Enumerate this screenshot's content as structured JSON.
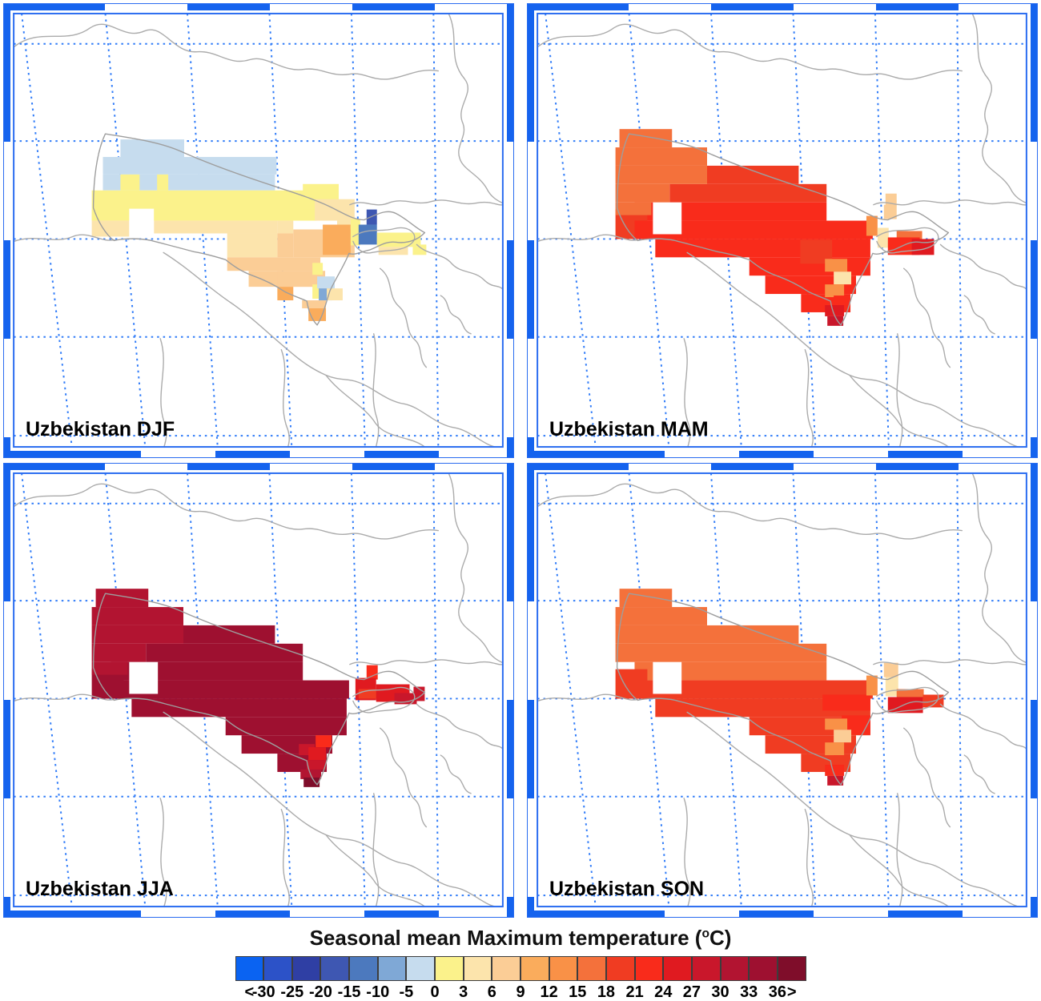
{
  "chart_data": {
    "type": "heatmap",
    "kind": "gridded seasonal climatology maps, 2x2 panel figure",
    "region": "Uzbekistan",
    "variable": "Seasonal mean Maximum temperature",
    "units": "°C",
    "grid_style": "blue dotted graticule, gray country borders, blue segmented map frame",
    "panels": [
      {
        "season": "DJF",
        "label": "Uzbekistan DJF",
        "cells": [
          [
            146,
            170,
            80,
            24,
            6
          ],
          [
            124,
            192,
            218,
            22,
            6
          ],
          [
            124,
            214,
            216,
            20,
            6
          ],
          [
            146,
            214,
            24,
            20,
            7
          ],
          [
            192,
            214,
            14,
            20,
            7
          ],
          [
            110,
            234,
            283,
            38,
            7
          ],
          [
            375,
            226,
            45,
            32,
            7
          ],
          [
            110,
            258,
            47,
            14,
            7
          ],
          [
            110,
            272,
            47,
            20,
            8
          ],
          [
            188,
            272,
            155,
            16,
            8
          ],
          [
            343,
            272,
            20,
            16,
            8
          ],
          [
            280,
            288,
            63,
            30,
            8
          ],
          [
            390,
            245,
            50,
            27,
            8
          ],
          [
            418,
            258,
            18,
            20,
            8
          ],
          [
            280,
            318,
            117,
            17,
            9
          ],
          [
            307,
            335,
            96,
            20,
            9
          ],
          [
            363,
            283,
            77,
            35,
            9
          ],
          [
            343,
            288,
            20,
            30,
            9
          ],
          [
            343,
            335,
            54,
            20,
            9
          ],
          [
            374,
            372,
            30,
            10,
            9
          ],
          [
            343,
            355,
            20,
            17,
            10
          ],
          [
            400,
            277,
            35,
            38,
            10
          ],
          [
            382,
            382,
            22,
            16,
            10
          ],
          [
            157,
            257,
            31,
            35,
            -1
          ],
          [
            387,
            325,
            13,
            15,
            7
          ],
          [
            387,
            352,
            10,
            18,
            7
          ],
          [
            393,
            342,
            22,
            15,
            6
          ],
          [
            395,
            357,
            17,
            15,
            5
          ],
          [
            405,
            357,
            20,
            15,
            8
          ],
          [
            435,
            270,
            12,
            33,
            7
          ],
          [
            455,
            258,
            13,
            19,
            3
          ],
          [
            445,
            277,
            23,
            25,
            4
          ],
          [
            468,
            287,
            55,
            18,
            7
          ],
          [
            513,
            302,
            17,
            13,
            7
          ],
          [
            470,
            305,
            37,
            10,
            8
          ]
        ]
      },
      {
        "season": "MAM",
        "label": "Uzbekistan MAM",
        "cells": [
          [
            225,
            203,
            115,
            23,
            13
          ],
          [
            178,
            226,
            197,
            23,
            13
          ],
          [
            134,
            249,
            241,
            23,
            14
          ],
          [
            110,
            258,
            40,
            37,
            13
          ],
          [
            134,
            272,
            299,
            23,
            14
          ],
          [
            160,
            295,
            270,
            23,
            14
          ],
          [
            278,
            318,
            152,
            23,
            14
          ],
          [
            298,
            341,
            114,
            23,
            14
          ],
          [
            343,
            364,
            62,
            23,
            14
          ],
          [
            342,
            296,
            40,
            30,
            13
          ],
          [
            115,
            157,
            66,
            23,
            12
          ],
          [
            110,
            180,
            115,
            23,
            12
          ],
          [
            110,
            203,
            115,
            23,
            12
          ],
          [
            110,
            226,
            68,
            23,
            12
          ],
          [
            110,
            249,
            45,
            16,
            12
          ],
          [
            157,
            249,
            36,
            40,
            -1
          ],
          [
            449,
            238,
            14,
            16,
            9
          ],
          [
            447,
            252,
            16,
            18,
            9
          ],
          [
            425,
            266,
            14,
            25,
            11
          ],
          [
            439,
            281,
            14,
            25,
            8
          ],
          [
            463,
            285,
            32,
            10,
            12
          ],
          [
            452,
            293,
            40,
            22,
            14
          ],
          [
            482,
            295,
            28,
            20,
            15
          ],
          [
            373,
            320,
            28,
            16,
            11
          ],
          [
            384,
            336,
            22,
            16,
            8
          ],
          [
            373,
            352,
            24,
            16,
            11
          ],
          [
            384,
            366,
            20,
            12,
            14
          ],
          [
            373,
            378,
            24,
            14,
            15
          ],
          [
            376,
            392,
            20,
            12,
            16
          ]
        ]
      },
      {
        "season": "JJA",
        "label": "Uzbekistan JJA",
        "cells": [
          [
            225,
            203,
            115,
            23,
            18
          ],
          [
            178,
            226,
            197,
            23,
            18
          ],
          [
            134,
            249,
            241,
            23,
            18
          ],
          [
            110,
            258,
            40,
            37,
            18
          ],
          [
            134,
            272,
            299,
            23,
            18
          ],
          [
            160,
            295,
            270,
            23,
            18
          ],
          [
            278,
            318,
            152,
            23,
            18
          ],
          [
            298,
            341,
            114,
            23,
            18
          ],
          [
            343,
            364,
            62,
            23,
            18
          ],
          [
            115,
            157,
            66,
            23,
            17
          ],
          [
            110,
            180,
            115,
            23,
            17
          ],
          [
            110,
            203,
            115,
            23,
            17
          ],
          [
            110,
            226,
            68,
            23,
            17
          ],
          [
            110,
            249,
            45,
            16,
            17
          ],
          [
            157,
            249,
            36,
            40,
            -1
          ],
          [
            455,
            253,
            14,
            18,
            14
          ],
          [
            441,
            269,
            26,
            28,
            15
          ],
          [
            445,
            283,
            24,
            12,
            13
          ],
          [
            467,
            277,
            42,
            22,
            15
          ],
          [
            490,
            288,
            28,
            14,
            16
          ],
          [
            514,
            280,
            14,
            18,
            16
          ],
          [
            391,
            341,
            20,
            15,
            14
          ],
          [
            370,
            352,
            20,
            14,
            16
          ],
          [
            382,
            356,
            22,
            16,
            15
          ],
          [
            380,
            372,
            24,
            12,
            16
          ],
          [
            372,
            384,
            26,
            12,
            17
          ],
          [
            376,
            394,
            20,
            12,
            19
          ]
        ]
      },
      {
        "season": "SON",
        "label": "Uzbekistan SON",
        "cells": [
          [
            115,
            157,
            66,
            23,
            12
          ],
          [
            110,
            180,
            115,
            23,
            12
          ],
          [
            110,
            203,
            230,
            23,
            12
          ],
          [
            110,
            226,
            265,
            23,
            12
          ],
          [
            134,
            249,
            241,
            23,
            12
          ],
          [
            110,
            258,
            40,
            37,
            13
          ],
          [
            134,
            272,
            299,
            23,
            13
          ],
          [
            160,
            295,
            270,
            23,
            13
          ],
          [
            278,
            318,
            152,
            23,
            13
          ],
          [
            298,
            341,
            114,
            23,
            13
          ],
          [
            343,
            364,
            62,
            23,
            13
          ],
          [
            370,
            290,
            60,
            20,
            14
          ],
          [
            394,
            316,
            36,
            24,
            14
          ],
          [
            157,
            249,
            36,
            40,
            -1
          ],
          [
            447,
            250,
            18,
            18,
            9
          ],
          [
            449,
            268,
            16,
            24,
            8
          ],
          [
            425,
            266,
            14,
            25,
            11
          ],
          [
            463,
            283,
            34,
            12,
            12
          ],
          [
            452,
            293,
            44,
            20,
            15
          ],
          [
            496,
            290,
            26,
            16,
            13
          ],
          [
            373,
            320,
            28,
            14,
            11
          ],
          [
            384,
            334,
            22,
            16,
            9
          ],
          [
            373,
            350,
            24,
            16,
            11
          ],
          [
            384,
            366,
            20,
            12,
            13
          ],
          [
            373,
            378,
            24,
            14,
            14
          ],
          [
            376,
            392,
            20,
            12,
            16
          ]
        ]
      }
    ],
    "colorbar": {
      "title": "Seasonal mean Maximum temperature (°C)",
      "title_parts": {
        "prefix": "Seasonal mean Maximum temperature (",
        "sup": "o",
        "suffix": "C)"
      },
      "tick_labels": [
        "<",
        "-30",
        "-25",
        "-20",
        "-15",
        "-10",
        "-5",
        "0",
        "3",
        "6",
        "9",
        "12",
        "15",
        "18",
        "21",
        "24",
        "27",
        "30",
        "33",
        "36",
        ">"
      ],
      "bin_edges_celsius": [
        -30,
        -25,
        -20,
        -15,
        -10,
        -5,
        0,
        3,
        6,
        9,
        12,
        15,
        18,
        21,
        24,
        27,
        30,
        33,
        36
      ],
      "colors": [
        "#0A63F2",
        "#2C52C8",
        "#2F3FA4",
        "#3E57B2",
        "#4C79BE",
        "#7FA8D6",
        "#C6DCEE",
        "#FBF28B",
        "#FCE4AC",
        "#FBCD96",
        "#FAAC5C",
        "#F99147",
        "#F4713B",
        "#F03C22",
        "#F92B1B",
        "#E01A20",
        "#C9172B",
        "#B21431",
        "#9E1030",
        "#7F0D2A"
      ],
      "frame_blue": "#1563EE",
      "grid_blue": "#2F7BF8",
      "border_gray": "#ABABAB"
    }
  }
}
